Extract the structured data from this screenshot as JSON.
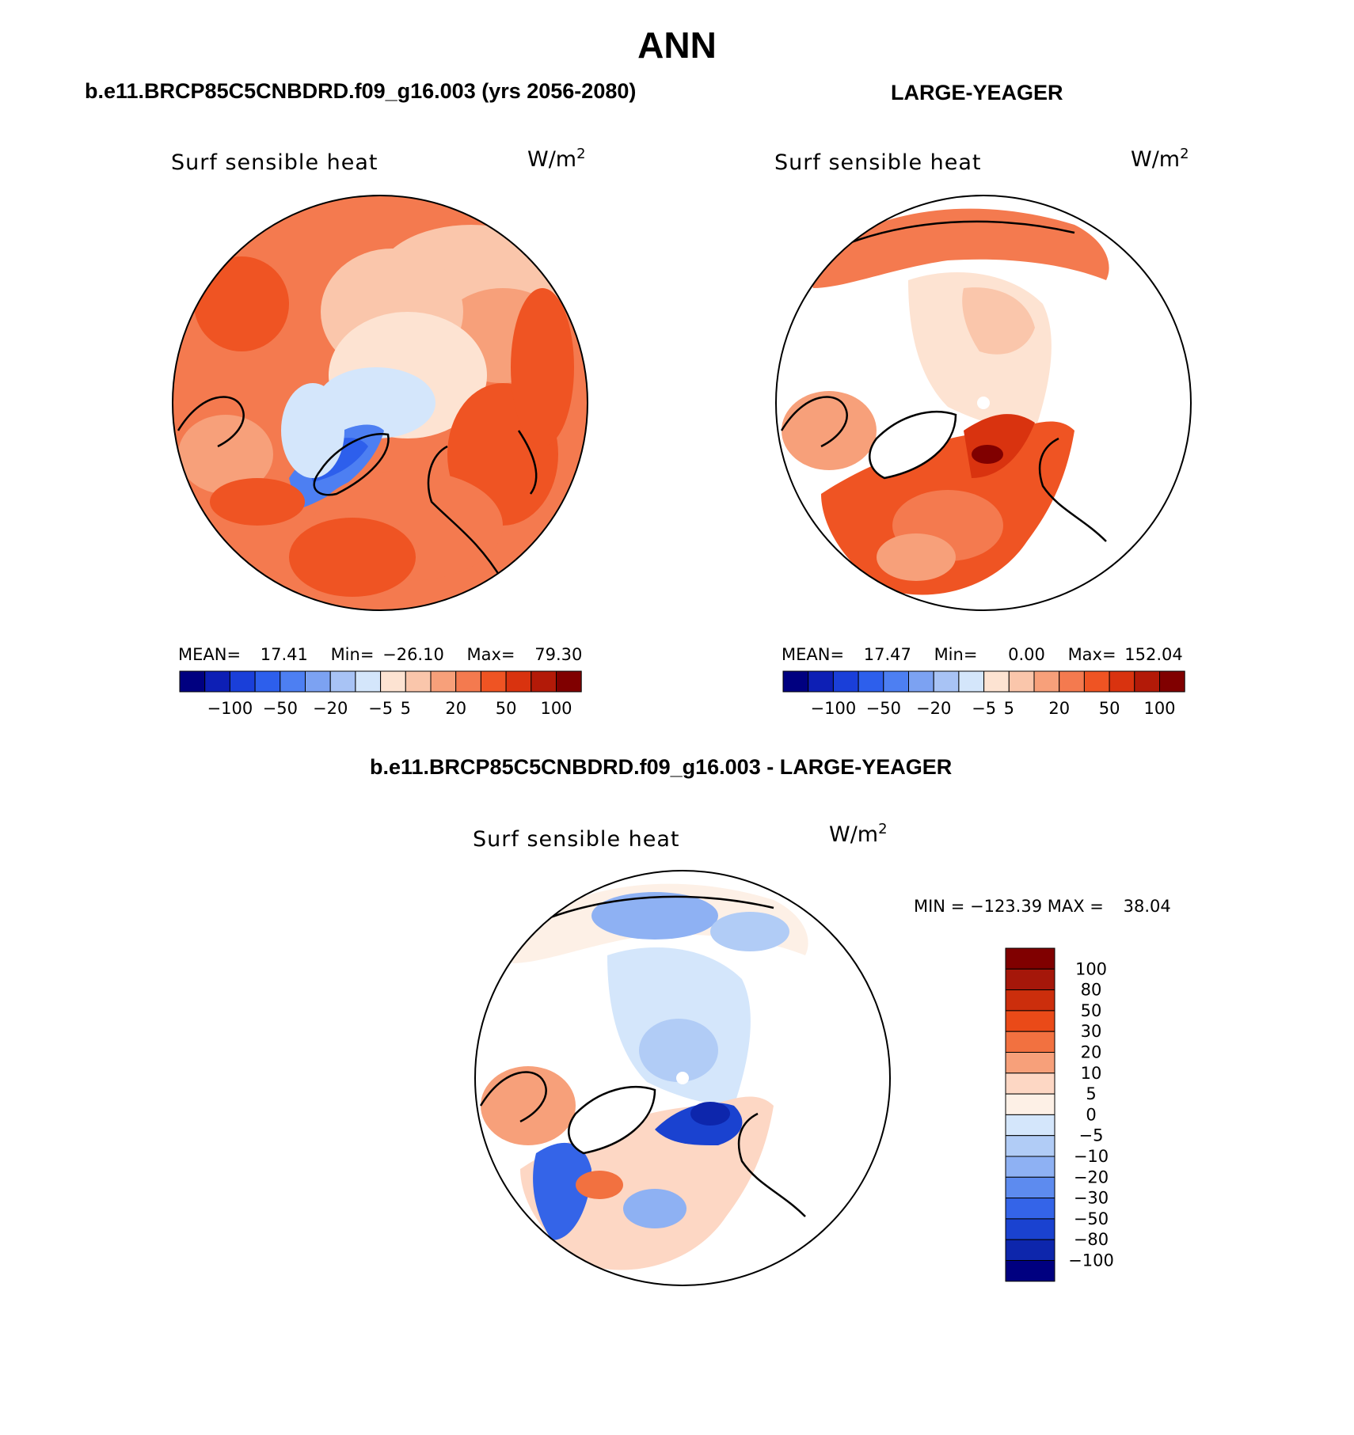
{
  "page_title": "ANN",
  "panels": [
    {
      "heading": "b.e11.BRCP85C5CNBDRD.f09_g16.003 (yrs 2056-2080)",
      "variable": "Surf sensible heat",
      "unit_base": "W/m",
      "unit_exp": "2",
      "stats": {
        "mean_label": "MEAN=",
        "mean": "17.41",
        "min_label": "Min=",
        "min": "−26.10",
        "max_label": "Max=",
        "max": "79.30"
      },
      "colorbar_labels": [
        "−100",
        "−50",
        "−20",
        "−5",
        "5",
        "20",
        "50",
        "100"
      ]
    },
    {
      "heading": "LARGE-YEAGER",
      "variable": "Surf sensible heat",
      "unit_base": "W/m",
      "unit_exp": "2",
      "stats": {
        "mean_label": "MEAN=",
        "mean": "17.47",
        "min_label": "Min=",
        "min": "0.00",
        "max_label": "Max=",
        "max": "152.04"
      },
      "colorbar_labels": [
        "−100",
        "−50",
        "−20",
        "−5",
        "5",
        "20",
        "50",
        "100"
      ]
    },
    {
      "heading": "b.e11.BRCP85C5CNBDRD.f09_g16.003 - LARGE-YEAGER",
      "variable": "Surf sensible heat",
      "unit_base": "W/m",
      "unit_exp": "2",
      "stats": {
        "min_label": "MIN =",
        "min": "−123.39",
        "max_label": "MAX =",
        "max": "38.04"
      },
      "colorbar_labels": [
        "100",
        "80",
        "50",
        "30",
        "20",
        "10",
        "5",
        "0",
        "−5",
        "−10",
        "−20",
        "−30",
        "−50",
        "−80",
        "−100"
      ]
    }
  ],
  "colors": {
    "scale16": [
      "#000080",
      "#0d1fb5",
      "#1a3fd9",
      "#2d5fec",
      "#4d7ff2",
      "#7ca2f2",
      "#a8c3f5",
      "#d4e6fb",
      "#fde3d2",
      "#fac6ab",
      "#f7a07a",
      "#f47a4f",
      "#ef5423",
      "#d9330f",
      "#b31a08",
      "#800000"
    ],
    "diff16": [
      "#800000",
      "#a5170a",
      "#cc2e0c",
      "#ea4a18",
      "#f27140",
      "#f7a07a",
      "#fdd7c4",
      "#fdf0e6",
      "#d4e6fb",
      "#b1ccf6",
      "#8eb1f3",
      "#5d8bef",
      "#3464e8",
      "#1a42d0",
      "#0d26ac",
      "#000080"
    ]
  }
}
